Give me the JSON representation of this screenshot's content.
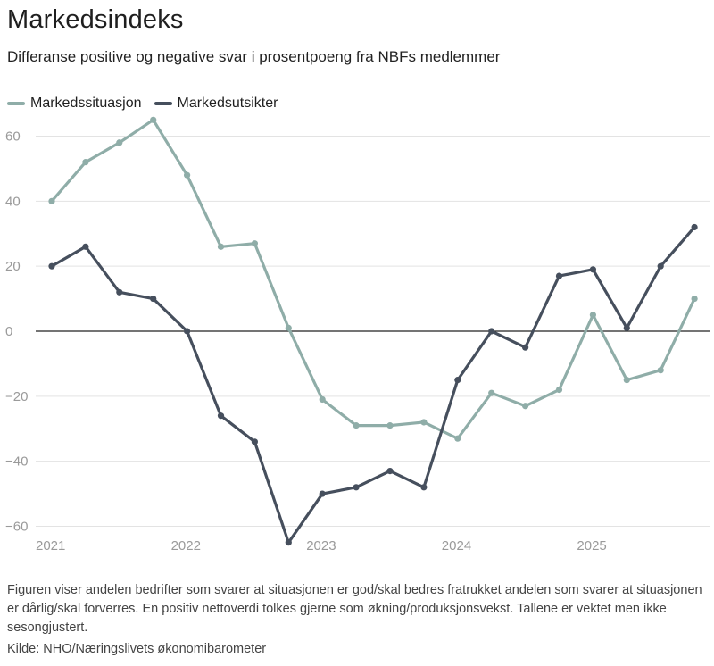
{
  "header": {
    "title": "Markedsindeks",
    "subtitle": "Differanse positive og negative svar i prosentpoeng fra NBFs medlemmer"
  },
  "footer": {
    "note": "Figuren viser andelen bedrifter som svarer at situasjonen er god/skal bedres fratrukket andelen som svarer at situasjonen er dårlig/skal forverres. En positiv nettoverdi tolkes gjerne som økning/produksjonsvekst. Tallene er vektet men ikke sesongjustert.",
    "source": "Kilde: NHO/Næringslivets økonomibarometer"
  },
  "colors": {
    "situasjon": "#8fada8",
    "utsikter": "#464f5d",
    "grid": "#e3e3e3",
    "zero": "#222222"
  },
  "chart_data": {
    "type": "line",
    "x": [
      "2021Q1",
      "2021Q2",
      "2021Q3",
      "2021Q4",
      "2022Q1",
      "2022Q2",
      "2022Q3",
      "2022Q4",
      "2023Q1",
      "2023Q2",
      "2023Q3",
      "2023Q4",
      "2024Q1",
      "2024Q2",
      "2024Q3",
      "2024Q4",
      "2025Q1",
      "2025Q2",
      "2025Q3",
      "2025Q4"
    ],
    "x_tick_labels": [
      "2021",
      "2022",
      "2023",
      "2024",
      "2025"
    ],
    "y_ticks": [
      60,
      40,
      20,
      0,
      -20,
      -40,
      -60
    ],
    "y_tick_labels": [
      "60",
      "40",
      "20",
      "0",
      "−20",
      "−40",
      "−60"
    ],
    "ylim": [
      -60,
      65
    ],
    "grid": true,
    "legend_position": "top-left",
    "series": [
      {
        "name": "Markedssituasjon",
        "values": [
          40,
          52,
          58,
          65,
          48,
          26,
          27,
          1,
          -21,
          -29,
          -29,
          -28,
          -33,
          -19,
          -23,
          -18,
          5,
          -15,
          -12,
          10
        ]
      },
      {
        "name": "Markedsutsikter",
        "values": [
          20,
          26,
          12,
          10,
          0,
          -26,
          -34,
          -65,
          -50,
          -48,
          -43,
          -48,
          -15,
          0,
          -5,
          17,
          19,
          1,
          20,
          32
        ]
      }
    ]
  }
}
